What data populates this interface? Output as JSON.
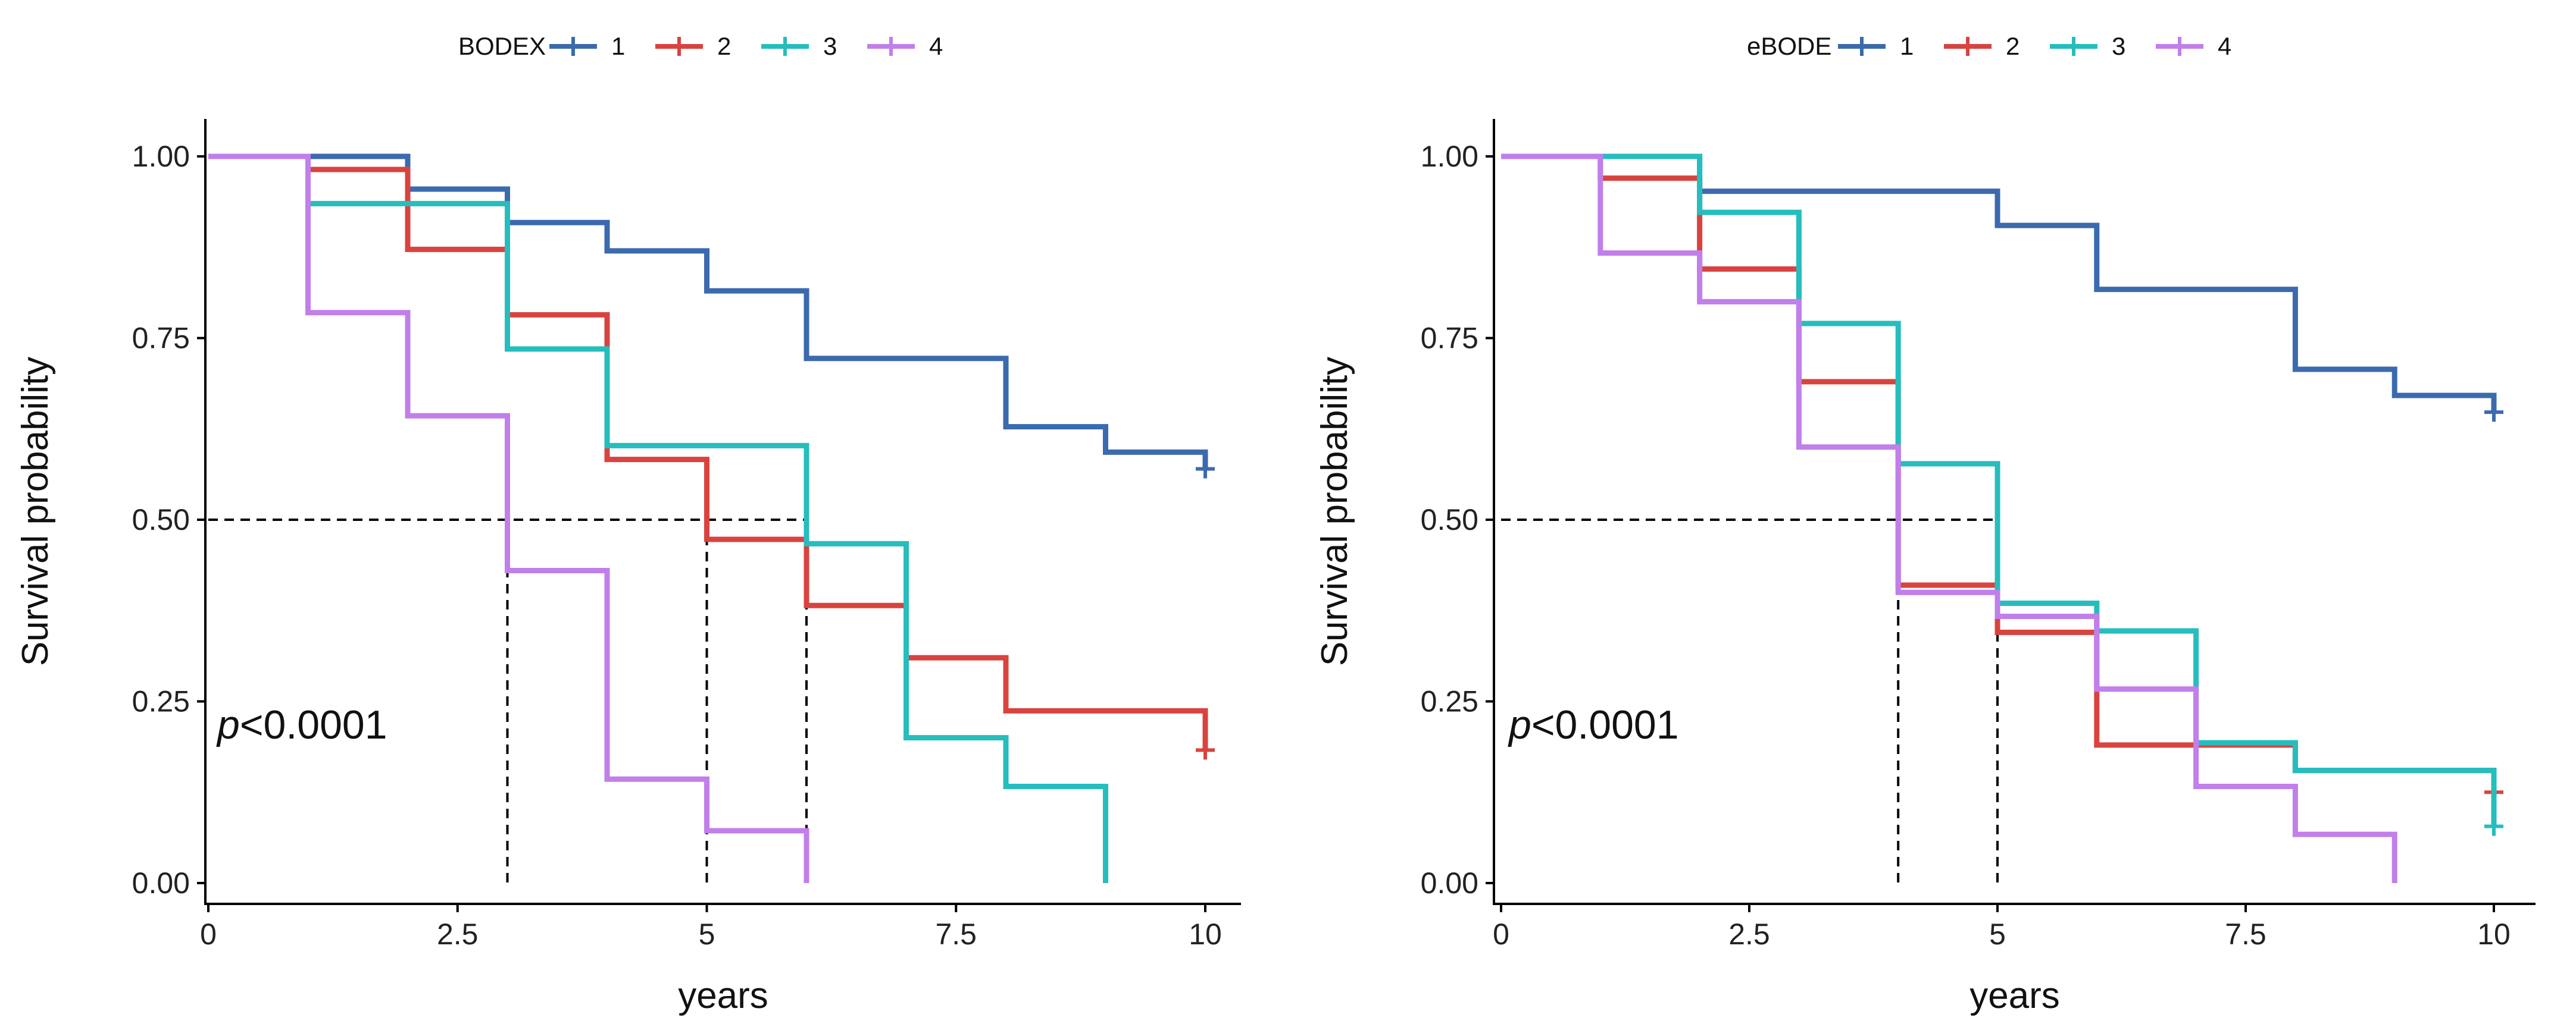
{
  "chart_data": [
    {
      "type": "line",
      "step": true,
      "legend": {
        "title": "BODEX",
        "position": "top"
      },
      "xlabel": "years",
      "ylabel": "Survival probability",
      "xlim": [
        0,
        10
      ],
      "ylim": [
        0,
        1
      ],
      "xticks": [
        "0",
        "2.5",
        "5",
        "7.5",
        "10"
      ],
      "yticks": [
        "0.00",
        "0.25",
        "0.50",
        "0.75",
        "1.00"
      ],
      "grid": false,
      "annotation": {
        "p_italic": "p",
        "p_rest": "<0.0001"
      },
      "median_reference": {
        "y": 0.5,
        "x": [
          3,
          5,
          6
        ]
      },
      "series": [
        {
          "name": "1",
          "color": "#3B6AAE",
          "x": [
            0,
            2,
            3,
            4,
            5,
            6,
            8,
            9,
            10
          ],
          "y": [
            1.0,
            0.955,
            0.909,
            0.87,
            0.815,
            0.722,
            0.628,
            0.593,
            0.57
          ],
          "censor": [
            [
              10,
              0.57
            ]
          ]
        },
        {
          "name": "2",
          "color": "#D9433F",
          "x": [
            0,
            1,
            2,
            3,
            4,
            5,
            6,
            7,
            8,
            10
          ],
          "y": [
            1.0,
            0.982,
            0.872,
            0.782,
            0.583,
            0.473,
            0.382,
            0.31,
            0.237,
            0.183
          ],
          "censor": [
            [
              10,
              0.183
            ]
          ]
        },
        {
          "name": "3",
          "color": "#26BDBD",
          "x": [
            0,
            1,
            3,
            4,
            6,
            7,
            8,
            9
          ],
          "y": [
            1.0,
            0.935,
            0.735,
            0.602,
            0.467,
            0.2,
            0.133,
            0.0
          ],
          "censor": []
        },
        {
          "name": "4",
          "color": "#C17FEA",
          "x": [
            0,
            1,
            2,
            3,
            4,
            5,
            6
          ],
          "y": [
            1.0,
            0.785,
            0.643,
            0.43,
            0.143,
            0.072,
            0.0
          ],
          "censor": []
        }
      ]
    },
    {
      "type": "line",
      "step": true,
      "legend": {
        "title": "eBODE",
        "position": "top"
      },
      "xlabel": "years",
      "ylabel": "Survival probability",
      "xlim": [
        0,
        10
      ],
      "ylim": [
        0,
        1
      ],
      "xticks": [
        "0",
        "2.5",
        "5",
        "7.5",
        "10"
      ],
      "yticks": [
        "0.00",
        "0.25",
        "0.50",
        "0.75",
        "1.00"
      ],
      "grid": false,
      "annotation": {
        "p_italic": "p",
        "p_rest": "<0.0001"
      },
      "median_reference": {
        "y": 0.5,
        "x": [
          4,
          5
        ]
      },
      "series": [
        {
          "name": "1",
          "color": "#3B6AAE",
          "x": [
            0,
            2,
            5,
            6,
            8,
            9,
            10
          ],
          "y": [
            1.0,
            0.952,
            0.905,
            0.817,
            0.707,
            0.671,
            0.648
          ],
          "censor": [
            [
              10,
              0.648
            ]
          ]
        },
        {
          "name": "2",
          "color": "#D9433F",
          "x": [
            0,
            1,
            2,
            3,
            4,
            5,
            6,
            8,
            10
          ],
          "y": [
            1.0,
            0.97,
            0.845,
            0.69,
            0.41,
            0.345,
            0.19,
            0.155,
            0.125
          ],
          "censor": [
            [
              10,
              0.125
            ]
          ]
        },
        {
          "name": "3",
          "color": "#26BDBD",
          "x": [
            0,
            2,
            3,
            4,
            5,
            6,
            7,
            8,
            10
          ],
          "y": [
            1.0,
            0.923,
            0.77,
            0.577,
            0.385,
            0.347,
            0.193,
            0.155,
            0.078
          ],
          "censor": [
            [
              10,
              0.078
            ]
          ]
        },
        {
          "name": "4",
          "color": "#C17FEA",
          "x": [
            0,
            1,
            2,
            3,
            4,
            5,
            6,
            7,
            8,
            9
          ],
          "y": [
            1.0,
            0.867,
            0.8,
            0.6,
            0.4,
            0.367,
            0.267,
            0.133,
            0.067,
            0.0
          ],
          "censor": []
        }
      ]
    }
  ]
}
